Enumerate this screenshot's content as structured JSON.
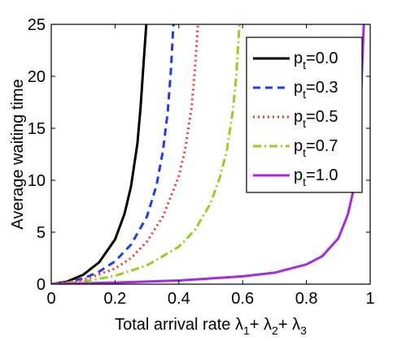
{
  "chart_data": {
    "type": "line",
    "xlabel": "Total arrival rate",
    "xlabel_math": [
      "λ",
      "1",
      "+ λ",
      "2",
      "+ λ",
      "3"
    ],
    "ylabel": "Average waiting time",
    "xlim": [
      0,
      1
    ],
    "ylim": [
      0,
      25
    ],
    "xticks": [
      0,
      0.2,
      0.4,
      0.6,
      0.8,
      1
    ],
    "xtick_labels": [
      "0",
      "0.2",
      "0.4",
      "0.6",
      "0.8",
      "1"
    ],
    "yticks": [
      0,
      5,
      10,
      15,
      20,
      25
    ],
    "ytick_labels": [
      "0",
      "5",
      "10",
      "15",
      "20",
      "25"
    ],
    "grid": false,
    "legend_position": "top-right",
    "series": [
      {
        "name": "p_t=0.0",
        "label_main": "p",
        "label_sub": "t",
        "label_value": "=0.0",
        "color": "#000000",
        "style": "solid",
        "x": [
          0,
          0.05,
          0.1,
          0.15,
          0.2,
          0.23,
          0.25,
          0.27,
          0.28,
          0.29,
          0.298
        ],
        "y": [
          0,
          0.25,
          0.9,
          2.1,
          4.3,
          6.8,
          9.4,
          13.5,
          17,
          21.5,
          25
        ]
      },
      {
        "name": "p_t=0.3",
        "label_main": "p",
        "label_sub": "t",
        "label_value": "=0.3",
        "color": "#1f3fe6",
        "style": "dashed",
        "x": [
          0,
          0.05,
          0.1,
          0.15,
          0.2,
          0.25,
          0.3,
          0.33,
          0.35,
          0.365,
          0.375,
          0.383
        ],
        "y": [
          0,
          0.15,
          0.55,
          1.2,
          2.2,
          3.8,
          6.5,
          9.5,
          12.8,
          16.5,
          20.5,
          25
        ]
      },
      {
        "name": "p_t=0.5",
        "label_main": "p",
        "label_sub": "t",
        "label_value": "=0.5",
        "color": "#ff2a2a",
        "style": "dotted",
        "x": [
          0,
          0.1,
          0.2,
          0.25,
          0.3,
          0.35,
          0.4,
          0.42,
          0.44,
          0.45,
          0.46
        ],
        "y": [
          0,
          0.4,
          1.5,
          2.5,
          4.1,
          6.5,
          10.4,
          13,
          17,
          20.5,
          25
        ]
      },
      {
        "name": "p_t=0.7",
        "label_main": "p",
        "label_sub": "t",
        "label_value": "=0.7",
        "color": "#9acd1f",
        "style": "dashdot",
        "x": [
          0,
          0.1,
          0.2,
          0.3,
          0.4,
          0.45,
          0.5,
          0.53,
          0.55,
          0.57,
          0.58,
          0.59
        ],
        "y": [
          0,
          0.25,
          0.8,
          1.8,
          3.6,
          5.2,
          7.8,
          10.4,
          12.8,
          16.8,
          20,
          25
        ]
      },
      {
        "name": "p_t=1.0",
        "label_main": "p",
        "label_sub": "t",
        "label_value": "=1.0",
        "color": "#a52bdc",
        "style": "solid",
        "x": [
          0,
          0.2,
          0.4,
          0.6,
          0.7,
          0.8,
          0.85,
          0.9,
          0.93,
          0.95,
          0.96,
          0.97,
          0.98
        ],
        "y": [
          0,
          0.15,
          0.35,
          0.75,
          1.1,
          1.9,
          2.7,
          4.4,
          6.7,
          9.4,
          12.2,
          17.2,
          25
        ]
      }
    ]
  }
}
